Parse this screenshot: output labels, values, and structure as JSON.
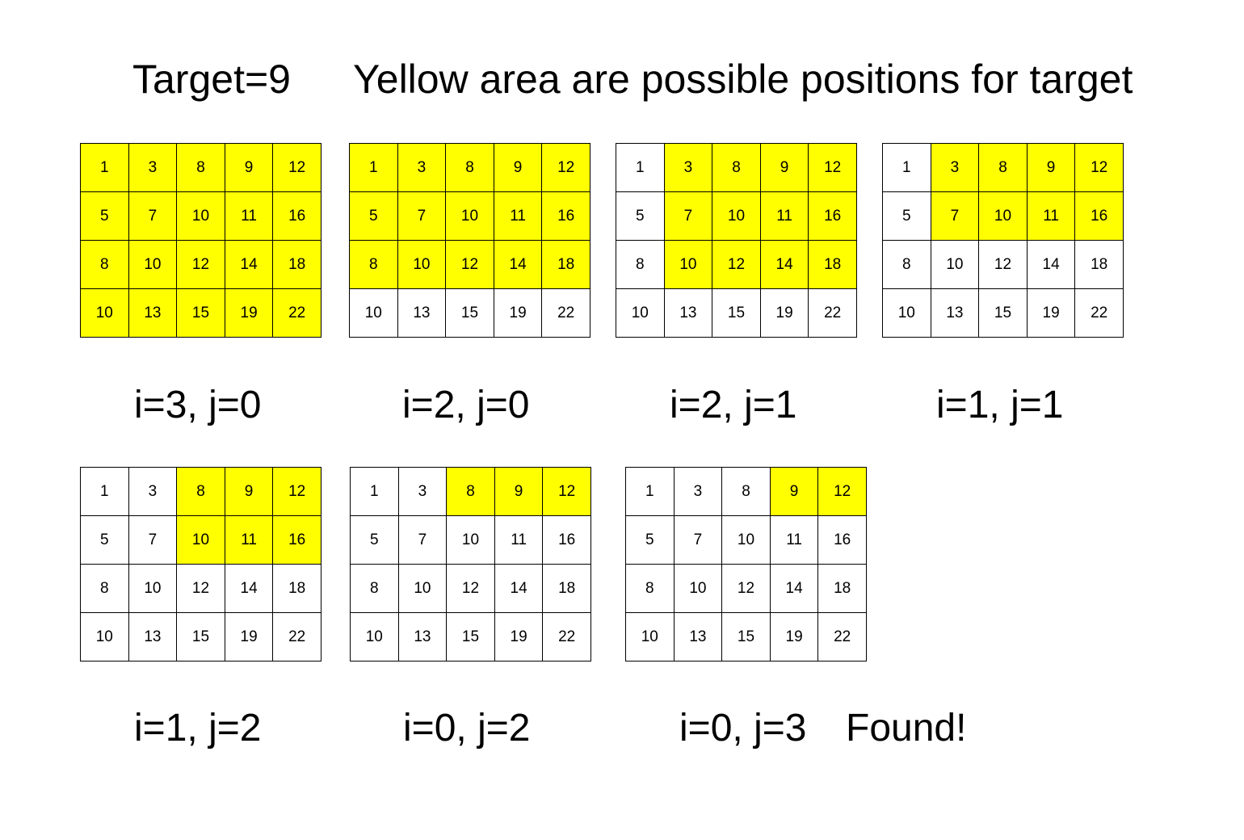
{
  "title": "Target=9",
  "description": "Yellow area are possible positions for target",
  "colors": {
    "highlight": "#ffff00",
    "background": "#ffffff",
    "border": "#000000"
  },
  "matrix": [
    [
      1,
      3,
      8,
      9,
      12
    ],
    [
      5,
      7,
      10,
      11,
      16
    ],
    [
      8,
      10,
      12,
      14,
      18
    ],
    [
      10,
      13,
      15,
      19,
      22
    ]
  ],
  "steps": [
    {
      "caption": "i=3, j=0",
      "rows_through": 3,
      "cols_from": 0
    },
    {
      "caption": "i=2, j=0",
      "rows_through": 2,
      "cols_from": 0
    },
    {
      "caption": "i=2, j=1",
      "rows_through": 2,
      "cols_from": 1
    },
    {
      "caption": "i=1, j=1",
      "rows_through": 1,
      "cols_from": 1
    },
    {
      "caption": "i=1, j=2",
      "rows_through": 1,
      "cols_from": 2
    },
    {
      "caption": "i=0, j=2",
      "rows_through": 0,
      "cols_from": 2
    },
    {
      "caption": "i=0, j=3",
      "rows_through": 0,
      "cols_from": 3
    }
  ],
  "found_label": "Found!"
}
